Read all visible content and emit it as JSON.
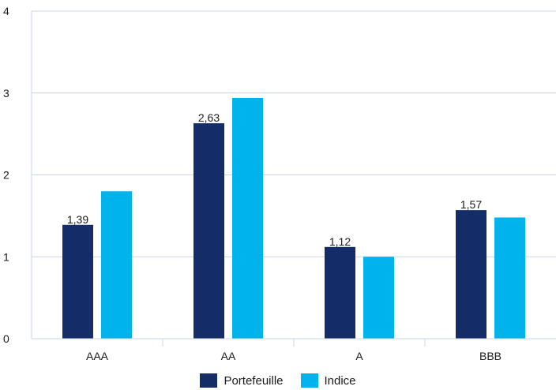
{
  "chart_data": {
    "type": "bar",
    "categories": [
      "AAA",
      "AA",
      "A",
      "BBB"
    ],
    "series": [
      {
        "name": "Portefeuille",
        "color": "#142d69",
        "values": [
          1.39,
          2.63,
          1.12,
          1.57
        ],
        "labels": [
          "1,39",
          "2,63",
          "1,12",
          "1,57"
        ]
      },
      {
        "name": "Indice",
        "color": "#00b4eb",
        "values": [
          1.8,
          2.94,
          1.0,
          1.48
        ],
        "labels": []
      }
    ],
    "yticks": [
      "0",
      "1",
      "2",
      "3",
      "4"
    ],
    "ylim": [
      0,
      4
    ],
    "title": "",
    "xlabel": "",
    "ylabel": "",
    "grid": true,
    "legend_position": "bottom"
  }
}
